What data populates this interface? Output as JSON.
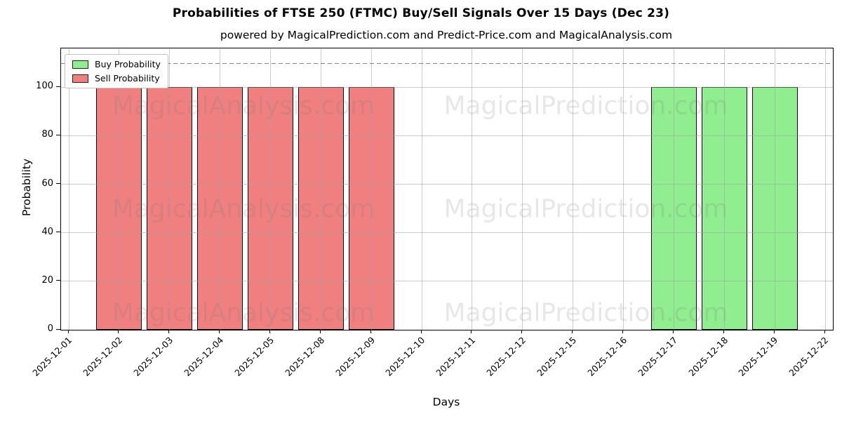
{
  "chart_data": {
    "type": "bar",
    "title": "Probabilities of FTSE 250 (FTMC) Buy/Sell Signals Over 15 Days (Dec 23)",
    "subtitle": "powered by MagicalPrediction.com and Predict-Price.com and MagicalAnalysis.com",
    "xlabel": "Days",
    "ylabel": "Probability",
    "categories": [
      "2025-12-01",
      "2025-12-02",
      "2025-12-03",
      "2025-12-04",
      "2025-12-05",
      "2025-12-08",
      "2025-12-09",
      "2025-12-10",
      "2025-12-11",
      "2025-12-12",
      "2025-12-15",
      "2025-12-16",
      "2025-12-17",
      "2025-12-18",
      "2025-12-19",
      "2025-12-22"
    ],
    "series": [
      {
        "name": "Buy Probability",
        "color": "#90ee90",
        "values": [
          0,
          0,
          0,
          0,
          0,
          0,
          0,
          0,
          0,
          0,
          0,
          0,
          100,
          100,
          100,
          0
        ]
      },
      {
        "name": "Sell Probability",
        "color": "#f08080",
        "values": [
          0,
          100,
          100,
          100,
          100,
          100,
          100,
          0,
          0,
          0,
          0,
          0,
          0,
          0,
          0,
          0
        ]
      }
    ],
    "ylim": [
      0,
      116
    ],
    "yticks": [
      0,
      20,
      40,
      60,
      80,
      100
    ],
    "grid": true,
    "legend_position": "upper-left",
    "bar_edge_color": "#000000",
    "bar_width_fraction": 0.9,
    "reference_line": {
      "y": 110,
      "style": "dashed",
      "color": "#828282"
    },
    "watermarks": {
      "left": "MagicalAnalysis.com",
      "right": "MagicalPrediction.com"
    }
  }
}
